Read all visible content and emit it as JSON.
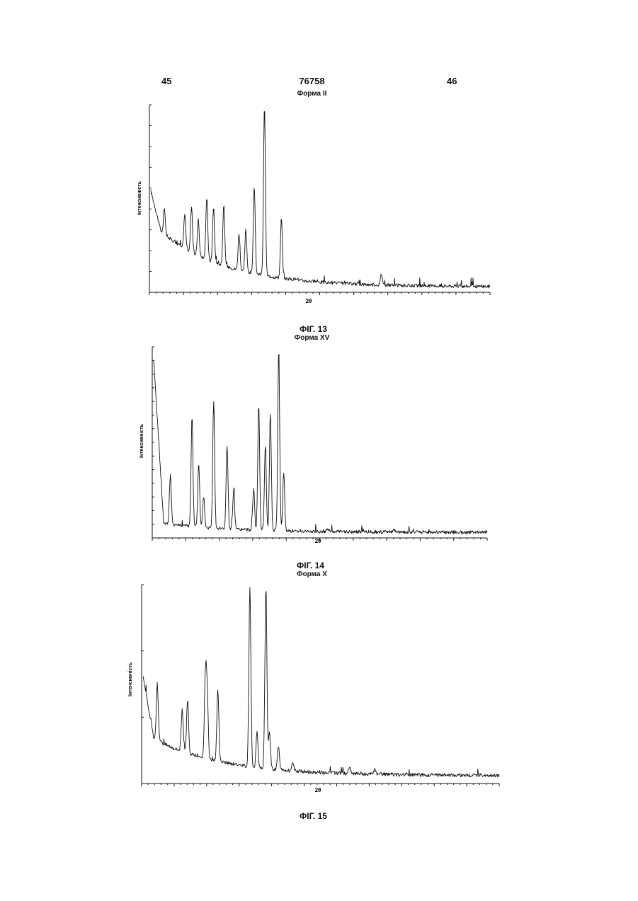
{
  "header": {
    "page_left": "45",
    "patent_number": "76758",
    "page_right": "46"
  },
  "figures": [
    {
      "caption": "ФІГ. 13"
    },
    {
      "caption": "ФІГ. 14"
    },
    {
      "caption": "ФІГ. 15"
    }
  ],
  "chart_data": [
    {
      "type": "line",
      "title": "Форма II",
      "xlabel": "2θ",
      "ylabel": "Інтенсивність",
      "grid": false,
      "baseline": {
        "start": 0.55,
        "knee": 0.33,
        "end": 0.03
      },
      "peaks": [
        {
          "x": 0.04,
          "y": 0.45
        },
        {
          "x": 0.1,
          "y": 0.42
        },
        {
          "x": 0.12,
          "y": 0.46
        },
        {
          "x": 0.14,
          "y": 0.4
        },
        {
          "x": 0.165,
          "y": 0.52
        },
        {
          "x": 0.185,
          "y": 0.46
        },
        {
          "x": 0.215,
          "y": 0.47
        },
        {
          "x": 0.26,
          "y": 0.32
        },
        {
          "x": 0.28,
          "y": 0.34
        },
        {
          "x": 0.305,
          "y": 0.57
        },
        {
          "x": 0.335,
          "y": 1.0
        },
        {
          "x": 0.385,
          "y": 0.4
        },
        {
          "x": 0.43,
          "y": 0.08
        },
        {
          "x": 0.49,
          "y": 0.06
        },
        {
          "x": 0.68,
          "y": 0.1
        }
      ]
    },
    {
      "type": "line",
      "title": "Форма XV",
      "xlabel": "2θ",
      "ylabel": "Інтенсивність",
      "grid": false,
      "baseline": {
        "start": 0.95,
        "knee": 0.08,
        "end": 0.03
      },
      "peaks": [
        {
          "x": 0.05,
          "y": 0.33
        },
        {
          "x": 0.115,
          "y": 0.65
        },
        {
          "x": 0.135,
          "y": 0.4
        },
        {
          "x": 0.15,
          "y": 0.22
        },
        {
          "x": 0.18,
          "y": 0.73
        },
        {
          "x": 0.22,
          "y": 0.49
        },
        {
          "x": 0.24,
          "y": 0.25
        },
        {
          "x": 0.3,
          "y": 0.26
        },
        {
          "x": 0.315,
          "y": 0.7
        },
        {
          "x": 0.335,
          "y": 0.49
        },
        {
          "x": 0.35,
          "y": 0.65
        },
        {
          "x": 0.375,
          "y": 1.0
        },
        {
          "x": 0.39,
          "y": 0.35
        },
        {
          "x": 0.52,
          "y": 0.05
        },
        {
          "x": 0.72,
          "y": 0.04
        }
      ]
    },
    {
      "type": "line",
      "title": "Форма X",
      "xlabel": "2θ",
      "ylabel": "Інтенсивність",
      "grid": false,
      "baseline": {
        "start": 0.55,
        "knee": 0.23,
        "end": 0.04
      },
      "peaks": [
        {
          "x": 0.04,
          "y": 0.51
        },
        {
          "x": 0.11,
          "y": 0.38
        },
        {
          "x": 0.125,
          "y": 0.42
        },
        {
          "x": 0.175,
          "y": 0.53
        },
        {
          "x": 0.18,
          "y": 0.45
        },
        {
          "x": 0.21,
          "y": 0.48
        },
        {
          "x": 0.3,
          "y": 1.0
        },
        {
          "x": 0.32,
          "y": 0.26
        },
        {
          "x": 0.345,
          "y": 1.0
        },
        {
          "x": 0.355,
          "y": 0.26
        },
        {
          "x": 0.38,
          "y": 0.19
        },
        {
          "x": 0.42,
          "y": 0.11
        },
        {
          "x": 0.58,
          "y": 0.08
        },
        {
          "x": 0.65,
          "y": 0.07
        }
      ]
    }
  ]
}
